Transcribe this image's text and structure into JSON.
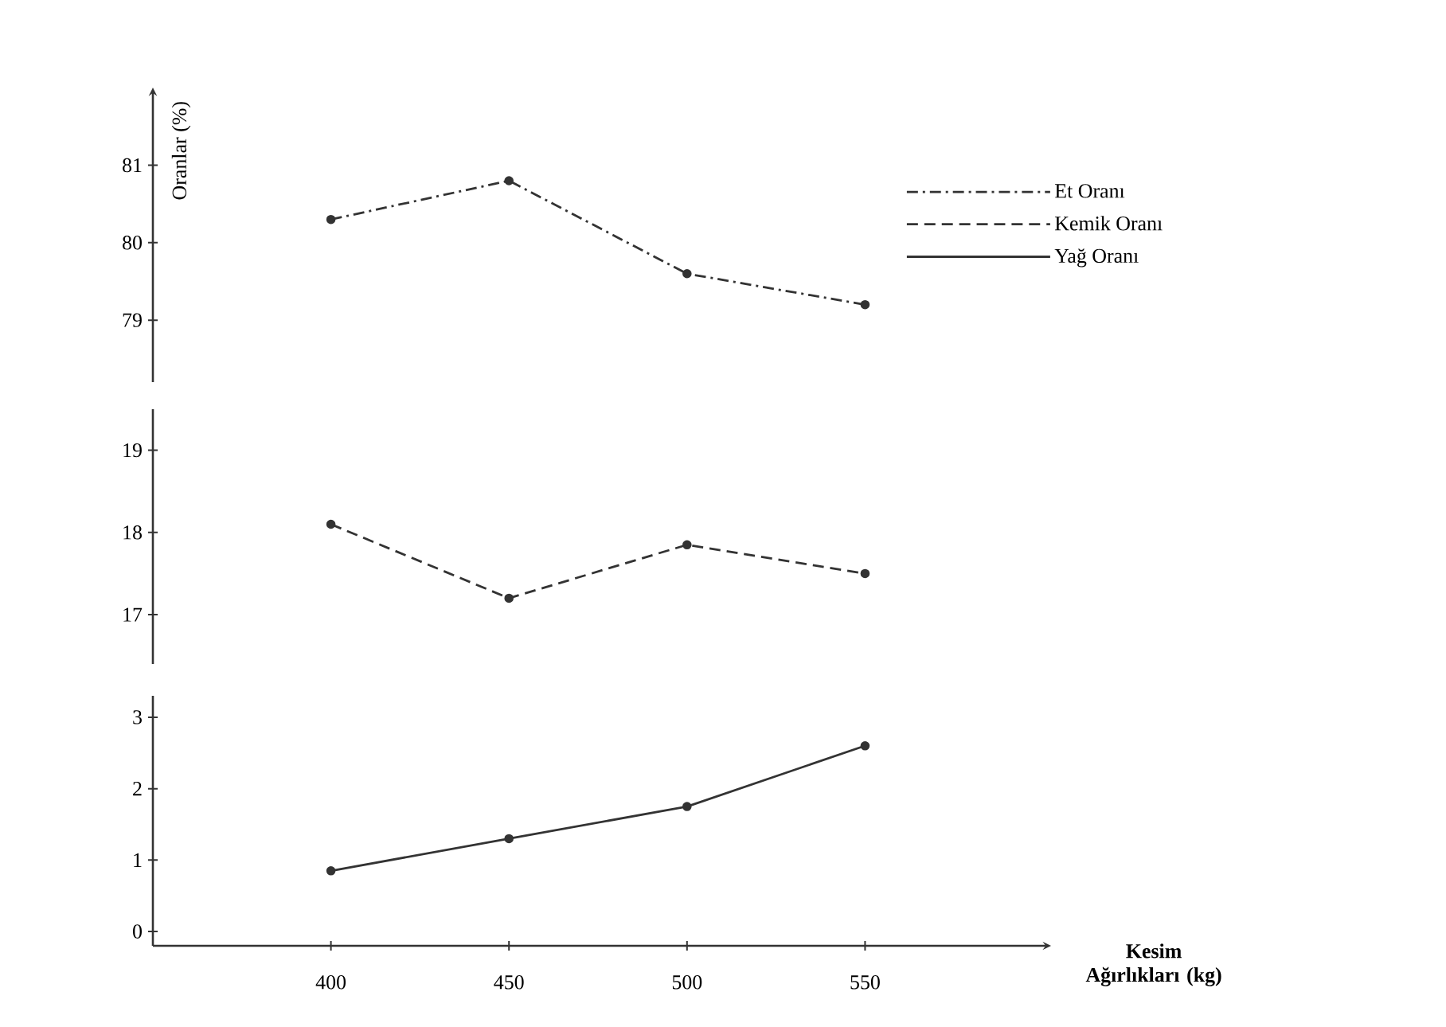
{
  "chart_data": [
    {
      "type": "line",
      "ylabel": "Oranlar (%)",
      "x": [
        400,
        450,
        500,
        550
      ],
      "ylim": [
        78.2,
        81.9
      ],
      "yticks": [
        79,
        80,
        81
      ],
      "tick_labels": "y",
      "legend": "right",
      "marker": "circle",
      "series": [
        {
          "name": "Et Oranı",
          "color": "#333333",
          "line_style": "dashdot",
          "values": [
            80.3,
            80.8,
            79.6,
            79.2
          ]
        }
      ]
    },
    {
      "type": "line",
      "x": [
        400,
        450,
        500,
        550
      ],
      "ylim": [
        16.4,
        19.5
      ],
      "yticks": [
        17,
        18,
        19
      ],
      "tick_labels": "y",
      "marker": "circle",
      "series": [
        {
          "name": "Kemik Oranı",
          "color": "#333333",
          "line_style": "dashed",
          "values": [
            18.1,
            17.2,
            17.85,
            17.5
          ]
        }
      ]
    },
    {
      "type": "line",
      "xlabel": "Kesim Ağırlıkları (kg)",
      "x": [
        400,
        450,
        500,
        550
      ],
      "xlim": [
        350,
        600
      ],
      "xticks": [
        400,
        450,
        500,
        550
      ],
      "ylim": [
        -0.2,
        3.3
      ],
      "yticks": [
        0,
        1,
        2,
        3
      ],
      "marker": "circle",
      "series": [
        {
          "name": "Yağ Oranı",
          "color": "#333333",
          "line_style": "solid",
          "values": [
            0.85,
            1.3,
            1.75,
            2.6
          ]
        }
      ]
    }
  ]
}
